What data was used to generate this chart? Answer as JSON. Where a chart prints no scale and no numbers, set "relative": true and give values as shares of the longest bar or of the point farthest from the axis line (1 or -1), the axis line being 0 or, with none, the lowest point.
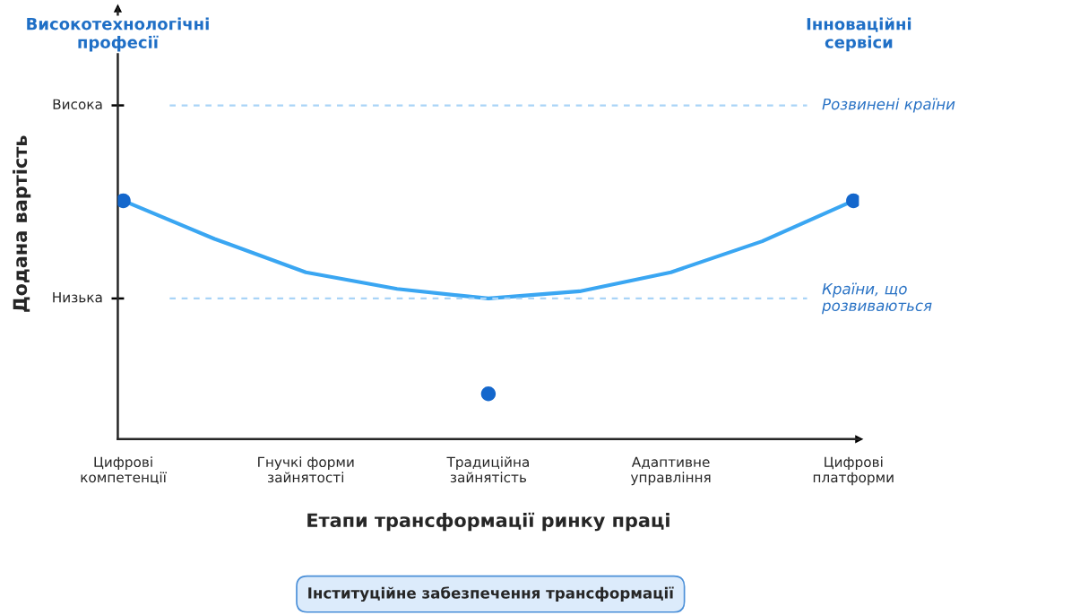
{
  "chart_data": {
    "type": "line",
    "xlabel": "Етапи трансформації ринку праці",
    "ylabel": "Додана вартість",
    "categories": [
      "Цифрові\nкомпетенції",
      null,
      "Гнучкі форми\nзайнятості",
      null,
      "Традиційна\nзайнятість",
      null,
      "Адаптивне\nуправління",
      null,
      "Цифрові\nплатформи"
    ],
    "relative": true,
    "series": [
      {
        "color": "#3aa6f2",
        "values": [
          1,
          0.84,
          0.7,
          0.63,
          0.59,
          0.62,
          0.7,
          0.83,
          1
        ],
        "marker": "none"
      },
      {
        "type": "scatter",
        "color": "#1467cc",
        "values": [
          1,
          null,
          null,
          null,
          0.19,
          null,
          null,
          null,
          1
        ],
        "marker": "circle"
      }
    ],
    "ref_lines": [
      {
        "axis": "y",
        "value": 1.4,
        "label": "Розвинені країни",
        "color": "#a9d4f7",
        "line_style": "dashed"
      },
      {
        "axis": "y",
        "value": 0.59,
        "label": "Країни, що\nрозвиваються",
        "color": "#a9d4f7",
        "line_style": "dashed"
      }
    ],
    "annotations": [
      "Високотехнологічні\nпрофесії",
      "Інноваційні\nсервіси",
      "Інституційне забезпечення трансформації",
      "Висока",
      "Низька"
    ],
    "grid": false
  }
}
